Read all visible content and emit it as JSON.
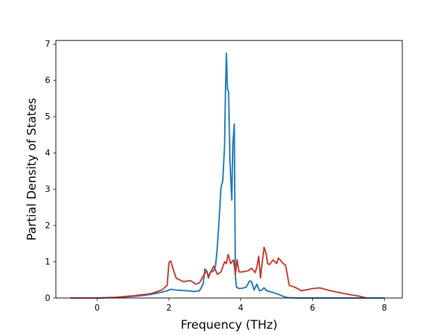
{
  "chart_data": {
    "type": "line",
    "title": "",
    "xlabel": "Frequency (THz)",
    "ylabel": "Partial Density of States",
    "xlim": [
      -1.15,
      8.5
    ],
    "ylim": [
      0,
      7.1
    ],
    "xticks": [
      0,
      2,
      4,
      6,
      8
    ],
    "yticks": [
      0,
      1,
      2,
      3,
      4,
      5,
      6,
      7
    ],
    "grid": false,
    "legend": "none",
    "series": [
      {
        "color": "#1f77b4",
        "x": [
          -0.75,
          -0.4,
          0,
          0.4,
          0.8,
          1.2,
          1.5,
          1.8,
          1.95,
          2.05,
          2.2,
          2.5,
          2.7,
          2.85,
          2.95,
          3.0,
          3.05,
          3.1,
          3.15,
          3.25,
          3.3,
          3.35,
          3.4,
          3.45,
          3.5,
          3.55,
          3.57,
          3.6,
          3.63,
          3.66,
          3.7,
          3.75,
          3.78,
          3.82,
          3.85,
          3.88,
          3.95,
          4.05,
          4.15,
          4.25,
          4.3,
          4.37,
          4.45,
          4.52,
          4.58,
          4.65,
          4.72,
          4.8,
          4.9,
          5.0,
          5.1,
          5.2,
          5.3,
          5.6,
          6.0,
          7.0,
          8.0
        ],
        "y": [
          0,
          0,
          0,
          0.01,
          0.03,
          0.06,
          0.1,
          0.16,
          0.2,
          0.24,
          0.22,
          0.2,
          0.18,
          0.2,
          0.38,
          0.8,
          0.75,
          0.6,
          0.7,
          0.75,
          0.9,
          1.45,
          2.2,
          3.05,
          3.25,
          4.2,
          5.5,
          6.75,
          5.75,
          5.7,
          3.75,
          2.7,
          4.25,
          4.8,
          0.6,
          0.3,
          0.26,
          0.27,
          0.3,
          0.47,
          0.45,
          0.22,
          0.38,
          0.2,
          0.22,
          0.28,
          0.2,
          0.18,
          0.15,
          0.12,
          0.08,
          0.04,
          0.01,
          0,
          0,
          0,
          0
        ]
      },
      {
        "color": "#c0392b",
        "x": [
          -0.75,
          0,
          0.5,
          1.0,
          1.5,
          1.8,
          1.95,
          2.0,
          2.05,
          2.1,
          2.2,
          2.4,
          2.6,
          2.75,
          2.85,
          2.95,
          3.05,
          3.1,
          3.15,
          3.25,
          3.35,
          3.45,
          3.55,
          3.6,
          3.65,
          3.72,
          3.8,
          3.85,
          3.9,
          3.95,
          4.05,
          4.2,
          4.3,
          4.4,
          4.45,
          4.5,
          4.55,
          4.6,
          4.65,
          4.7,
          4.75,
          4.8,
          4.9,
          5.0,
          5.05,
          5.1,
          5.15,
          5.25,
          5.35,
          5.5,
          5.7,
          6.0,
          6.2,
          6.5,
          7.0,
          7.3,
          7.5
        ],
        "y": [
          0,
          0,
          0.02,
          0.06,
          0.12,
          0.22,
          0.35,
          0.98,
          1.02,
          0.85,
          0.55,
          0.45,
          0.48,
          0.38,
          0.42,
          0.6,
          0.75,
          0.55,
          0.7,
          0.88,
          0.65,
          0.72,
          1.0,
          0.95,
          1.2,
          0.95,
          1.05,
          0.65,
          1.05,
          0.72,
          0.72,
          0.75,
          0.82,
          0.7,
          0.85,
          1.15,
          0.55,
          1.0,
          1.4,
          1.25,
          0.95,
          0.92,
          1.05,
          0.95,
          1.1,
          1.05,
          0.98,
          0.9,
          0.35,
          0.3,
          0.2,
          0.26,
          0.28,
          0.2,
          0.1,
          0.05,
          0
        ]
      }
    ]
  }
}
